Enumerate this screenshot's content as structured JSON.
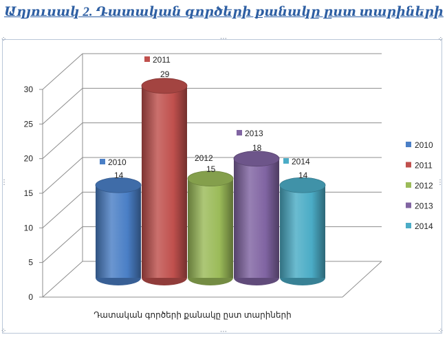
{
  "caption": "Աղյուսակ 2. Դատական գործերի քանակը ըստ տարիների",
  "chart_data": {
    "type": "bar",
    "style": "3d-cylinder",
    "categories": [
      "Դատական գործերի քանակը ըստ տարիների"
    ],
    "xlabel": "Դատական գործերի քանակը ըստ տարիների",
    "ylabel": "",
    "ylim": [
      0,
      30
    ],
    "yticks": [
      0,
      5,
      10,
      15,
      20,
      25,
      30
    ],
    "grid": true,
    "legend_position": "right",
    "series": [
      {
        "name": "2010",
        "values": [
          14
        ],
        "color": "#4a7fc6",
        "label": "14",
        "legend_label": "2010"
      },
      {
        "name": "2011",
        "values": [
          29
        ],
        "color": "#c0504d",
        "label": "29",
        "legend_label": "2011"
      },
      {
        "name": "2012",
        "values": [
          15
        ],
        "color": "#9bbb59",
        "label": "15",
        "legend_label": "2012"
      },
      {
        "name": "2013",
        "values": [
          18
        ],
        "color": "#8064a2",
        "label": "18",
        "legend_label": "2013"
      },
      {
        "name": "2014",
        "values": [
          14
        ],
        "color": "#4bacc6",
        "label": "14",
        "legend_label": "2014"
      }
    ]
  }
}
